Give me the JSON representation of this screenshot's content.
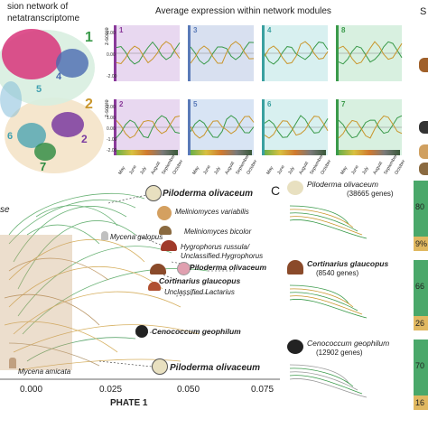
{
  "panelA": {
    "title_line1": "sion network of",
    "title_line2": "netatranscriptome",
    "module_labels": [
      "1",
      "2",
      "4",
      "5",
      "6",
      "7",
      "2"
    ]
  },
  "panelB": {
    "title": "Average expression within network modules",
    "row_labels": [
      "1",
      "2"
    ],
    "ylabel": "z-score",
    "yticks_top": [
      "2.00",
      "1.00",
      "0.00",
      "-1.00",
      "-2.00"
    ],
    "yticks_bottom": [
      "2.00",
      "1.00",
      "0.00",
      "-1.00",
      "-2.00"
    ],
    "module_numbers": [
      "1",
      "3",
      "4",
      "8",
      "2",
      "5",
      "6",
      "7"
    ],
    "months": [
      "May",
      "June",
      "July",
      "August",
      "September",
      "October"
    ],
    "colors": {
      "green": "#3a9a4a",
      "gold": "#c9962c",
      "purple": "#8a3a9a",
      "blue": "#5a7ab8",
      "teal": "#3aa0a0",
      "orange": "#e06020"
    }
  },
  "panelC_letter": "C",
  "panelS_letter": "S",
  "trajectory": {
    "xlabel": "PHATE 1",
    "xticks": [
      "0.000",
      "0.025",
      "0.050",
      "0.075"
    ],
    "left_label": "se",
    "labels": [
      {
        "text": "Piloderma olivaceum",
        "bold": true
      },
      {
        "text": "Meliniomyces variabilis",
        "bold": false
      },
      {
        "text": "Meliniomyces bicolor",
        "bold": false
      },
      {
        "text": "Mycena galopus",
        "bold": false
      },
      {
        "text": "Hygrophorus russula/",
        "bold": false
      },
      {
        "text": "Unclassified.Hygrophorus",
        "bold": false
      },
      {
        "text": "Piloderma olivaceum",
        "bold": true
      },
      {
        "text": "Cortinarius glaucopus",
        "bold": true
      },
      {
        "text": "Unclassified.Lactarius",
        "bold": false
      },
      {
        "text": "Cenococcum geophilum",
        "bold": true
      },
      {
        "text": "Mycena amicata",
        "bold": false
      },
      {
        "text": "Piloderma olivaceum",
        "bold": true
      }
    ]
  },
  "species_panels": [
    {
      "name": "Piloderma olivaceum",
      "genes": "(38665 genes)",
      "pct_top": "80",
      "pct_bottom": "9%"
    },
    {
      "name": "Cortinarius glaucopus",
      "genes": "(8540 genes)",
      "pct_top": "66",
      "pct_bottom": "26"
    },
    {
      "name": "Cenococcum geophilum",
      "genes": "(12902 genes)",
      "pct_top": "70",
      "pct_bottom": "16"
    }
  ]
}
